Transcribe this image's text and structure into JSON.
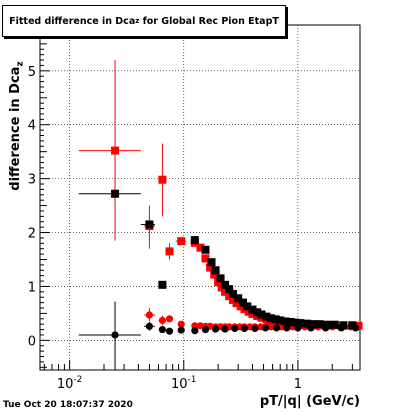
{
  "chart_data": {
    "type": "scatter",
    "title": {
      "main": "Fitted difference in Dca",
      "sub": "z",
      "rest": " for Global Rec Pion EtapT"
    },
    "ylabel": {
      "main": "difference in Dca",
      "sub": "z"
    },
    "xlabel": "pT/|q| (GeV/c)",
    "x_scale": "log",
    "xlim": [
      0.0055,
      3.5
    ],
    "ylim": [
      -0.55,
      5.85
    ],
    "x_tick_labels": [
      {
        "label": "10",
        "sup": "-2",
        "value": 0.01
      },
      {
        "label": "10",
        "sup": "-1",
        "value": 0.1
      },
      {
        "label": "1",
        "sup": "",
        "value": 1
      }
    ],
    "y_tick_labels": [
      {
        "label": "0",
        "value": 0
      },
      {
        "label": "1",
        "value": 1
      },
      {
        "label": "2",
        "value": 2
      },
      {
        "label": "3",
        "value": 3
      },
      {
        "label": "4",
        "value": 4
      },
      {
        "label": "5",
        "value": 5
      }
    ],
    "grid": true,
    "series": [
      {
        "color": "#ff0000",
        "marker": "square",
        "points": [
          {
            "x": 0.025,
            "y": 3.52,
            "xlo": 0.012,
            "xhi": 0.042,
            "ylo": 1.85,
            "yhi": 5.2
          },
          {
            "x": 0.05,
            "y": 2.12,
            "xlo": 0.045,
            "xhi": 0.056,
            "ylo": 1.7,
            "yhi": 2.5
          },
          {
            "x": 0.065,
            "y": 2.98,
            "xlo": 0.06,
            "xhi": 0.07,
            "ylo": 2.3,
            "yhi": 3.65
          },
          {
            "x": 0.075,
            "y": 1.65,
            "xlo": 0.071,
            "xhi": 0.079,
            "ylo": 1.5,
            "yhi": 1.8
          },
          {
            "x": 0.095,
            "y": 1.84,
            "xlo": 0.085,
            "xhi": 0.105,
            "ylo": 1.78,
            "yhi": 1.9
          },
          {
            "x": 0.125,
            "y": 1.81
          },
          {
            "x": 0.14,
            "y": 1.72
          },
          {
            "x": 0.155,
            "y": 1.52
          },
          {
            "x": 0.17,
            "y": 1.35
          },
          {
            "x": 0.185,
            "y": 1.22
          },
          {
            "x": 0.2,
            "y": 1.08
          },
          {
            "x": 0.215,
            "y": 0.98
          },
          {
            "x": 0.23,
            "y": 0.9
          },
          {
            "x": 0.25,
            "y": 0.82
          },
          {
            "x": 0.27,
            "y": 0.75
          },
          {
            "x": 0.29,
            "y": 0.69
          },
          {
            "x": 0.315,
            "y": 0.63
          },
          {
            "x": 0.34,
            "y": 0.58
          },
          {
            "x": 0.37,
            "y": 0.53
          },
          {
            "x": 0.4,
            "y": 0.49
          },
          {
            "x": 0.44,
            "y": 0.45
          },
          {
            "x": 0.48,
            "y": 0.42
          },
          {
            "x": 0.53,
            "y": 0.39
          },
          {
            "x": 0.58,
            "y": 0.37
          },
          {
            "x": 0.64,
            "y": 0.35
          },
          {
            "x": 0.7,
            "y": 0.33
          },
          {
            "x": 0.78,
            "y": 0.32
          },
          {
            "x": 0.86,
            "y": 0.31
          },
          {
            "x": 0.95,
            "y": 0.3
          },
          {
            "x": 1.05,
            "y": 0.29
          },
          {
            "x": 1.2,
            "y": 0.29
          },
          {
            "x": 1.35,
            "y": 0.28
          },
          {
            "x": 1.55,
            "y": 0.28
          },
          {
            "x": 1.8,
            "y": 0.28
          },
          {
            "x": 2.1,
            "y": 0.28
          },
          {
            "x": 2.5,
            "y": 0.27
          },
          {
            "x": 3.0,
            "y": 0.27
          },
          {
            "x": 3.4,
            "y": 0.27
          }
        ]
      },
      {
        "color": "#ff0000",
        "marker": "circle",
        "points": [
          {
            "x": 0.05,
            "y": 0.47,
            "xlo": 0.045,
            "xhi": 0.056,
            "ylo": 0.35,
            "yhi": 0.6
          },
          {
            "x": 0.065,
            "y": 0.37,
            "xlo": 0.06,
            "xhi": 0.07,
            "ylo": 0.28,
            "yhi": 0.46
          },
          {
            "x": 0.075,
            "y": 0.4
          },
          {
            "x": 0.095,
            "y": 0.3
          },
          {
            "x": 0.125,
            "y": 0.27
          },
          {
            "x": 0.14,
            "y": 0.27
          },
          {
            "x": 0.155,
            "y": 0.26
          },
          {
            "x": 0.17,
            "y": 0.26
          },
          {
            "x": 0.19,
            "y": 0.25
          },
          {
            "x": 0.21,
            "y": 0.25
          },
          {
            "x": 0.23,
            "y": 0.25
          },
          {
            "x": 0.25,
            "y": 0.25
          },
          {
            "x": 0.28,
            "y": 0.25
          },
          {
            "x": 0.31,
            "y": 0.25
          },
          {
            "x": 0.34,
            "y": 0.25
          },
          {
            "x": 0.38,
            "y": 0.25
          },
          {
            "x": 0.42,
            "y": 0.25
          },
          {
            "x": 0.47,
            "y": 0.25
          },
          {
            "x": 0.52,
            "y": 0.25
          },
          {
            "x": 0.58,
            "y": 0.25
          },
          {
            "x": 0.65,
            "y": 0.25
          },
          {
            "x": 0.72,
            "y": 0.25
          },
          {
            "x": 0.8,
            "y": 0.25
          },
          {
            "x": 0.9,
            "y": 0.25
          },
          {
            "x": 1.0,
            "y": 0.25
          },
          {
            "x": 1.15,
            "y": 0.25
          },
          {
            "x": 1.3,
            "y": 0.25
          },
          {
            "x": 1.5,
            "y": 0.25
          },
          {
            "x": 1.75,
            "y": 0.25
          },
          {
            "x": 2.0,
            "y": 0.25
          },
          {
            "x": 2.4,
            "y": 0.25
          },
          {
            "x": 2.9,
            "y": 0.25
          },
          {
            "x": 3.4,
            "y": 0.25
          }
        ]
      },
      {
        "color": "#000000",
        "marker": "square",
        "points": [
          {
            "x": 0.025,
            "y": 2.72,
            "xlo": 0.012,
            "xhi": 0.042,
            "ylo": 2.72,
            "yhi": 2.72
          },
          {
            "x": 0.05,
            "y": 2.15,
            "xlo": 0.042,
            "xhi": 0.056,
            "ylo": 2.1,
            "yhi": 2.2
          },
          {
            "x": 0.065,
            "y": 1.03,
            "xlo": 0.06,
            "xhi": 0.07,
            "ylo": 0.98,
            "yhi": 1.08
          },
          {
            "x": 0.125,
            "y": 1.86
          },
          {
            "x": 0.155,
            "y": 1.68
          },
          {
            "x": 0.175,
            "y": 1.45
          },
          {
            "x": 0.19,
            "y": 1.3
          },
          {
            "x": 0.21,
            "y": 1.15
          },
          {
            "x": 0.23,
            "y": 1.03
          },
          {
            "x": 0.25,
            "y": 0.95
          },
          {
            "x": 0.27,
            "y": 0.86
          },
          {
            "x": 0.3,
            "y": 0.78
          },
          {
            "x": 0.33,
            "y": 0.7
          },
          {
            "x": 0.36,
            "y": 0.63
          },
          {
            "x": 0.4,
            "y": 0.57
          },
          {
            "x": 0.44,
            "y": 0.52
          },
          {
            "x": 0.48,
            "y": 0.48
          },
          {
            "x": 0.53,
            "y": 0.44
          },
          {
            "x": 0.58,
            "y": 0.41
          },
          {
            "x": 0.64,
            "y": 0.39
          },
          {
            "x": 0.7,
            "y": 0.37
          },
          {
            "x": 0.78,
            "y": 0.35
          },
          {
            "x": 0.86,
            "y": 0.34
          },
          {
            "x": 0.95,
            "y": 0.33
          },
          {
            "x": 1.05,
            "y": 0.32
          },
          {
            "x": 1.2,
            "y": 0.31
          },
          {
            "x": 1.35,
            "y": 0.3
          },
          {
            "x": 1.55,
            "y": 0.3
          },
          {
            "x": 1.8,
            "y": 0.29
          },
          {
            "x": 2.1,
            "y": 0.29
          },
          {
            "x": 2.5,
            "y": 0.28
          },
          {
            "x": 3.0,
            "y": 0.28
          }
        ]
      },
      {
        "color": "#000000",
        "marker": "circle",
        "points": [
          {
            "x": 0.025,
            "y": 0.1,
            "xlo": 0.012,
            "xhi": 0.042,
            "ylo": -0.55,
            "yhi": 0.72
          },
          {
            "x": 0.05,
            "y": 0.26,
            "xlo": 0.045,
            "xhi": 0.056,
            "ylo": 0.18,
            "yhi": 0.34
          },
          {
            "x": 0.065,
            "y": 0.2
          },
          {
            "x": 0.075,
            "y": 0.17
          },
          {
            "x": 0.095,
            "y": 0.19
          },
          {
            "x": 0.125,
            "y": 0.18
          },
          {
            "x": 0.155,
            "y": 0.2
          },
          {
            "x": 0.19,
            "y": 0.21
          },
          {
            "x": 0.23,
            "y": 0.21
          },
          {
            "x": 0.28,
            "y": 0.22
          },
          {
            "x": 0.34,
            "y": 0.22
          },
          {
            "x": 0.42,
            "y": 0.22
          },
          {
            "x": 0.52,
            "y": 0.23
          },
          {
            "x": 0.65,
            "y": 0.23
          },
          {
            "x": 0.8,
            "y": 0.23
          },
          {
            "x": 1.0,
            "y": 0.23
          },
          {
            "x": 1.3,
            "y": 0.23
          },
          {
            "x": 1.75,
            "y": 0.23
          },
          {
            "x": 2.4,
            "y": 0.23
          },
          {
            "x": 3.2,
            "y": 0.23
          }
        ]
      }
    ]
  },
  "footer": {
    "timestamp": "Tue Oct 20 18:07:37 2020"
  }
}
